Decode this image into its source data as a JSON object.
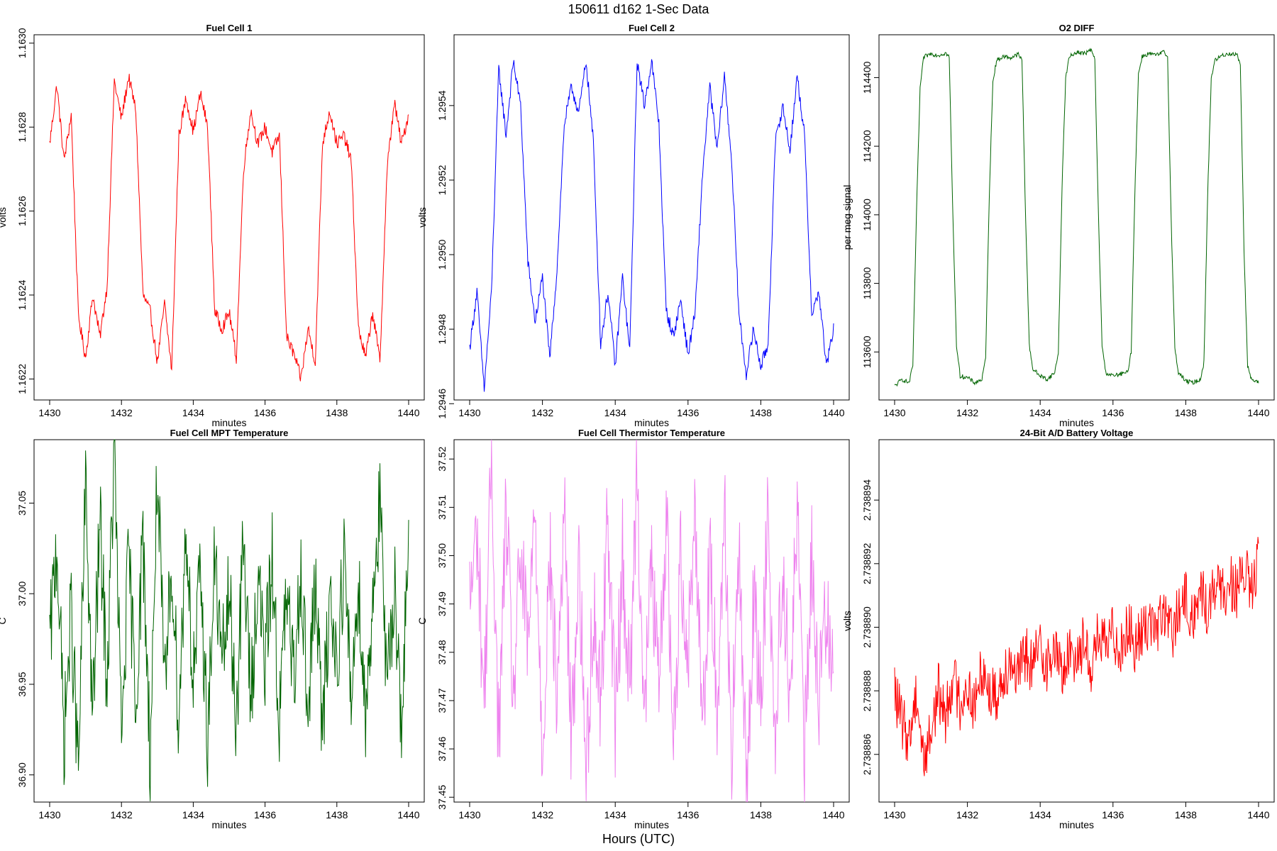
{
  "figure": {
    "title": "150611   d162   1-Sec Data",
    "xlabel": "Hours (UTC)"
  },
  "chart_data": [
    {
      "type": "line",
      "title": "Fuel Cell 1",
      "xlabel": "minutes",
      "ylabel": "volts",
      "color": "#ff0000",
      "xlim": [
        1430,
        1440
      ],
      "ylim": [
        1.16215,
        1.16302
      ],
      "xticks": [
        1430,
        1432,
        1434,
        1436,
        1438,
        1440
      ],
      "yticks": [
        1.1622,
        1.1624,
        1.1626,
        1.1628,
        1.163
      ],
      "ytick_labels": [
        "1.1622",
        "1.1624",
        "1.1626",
        "1.1628",
        "1.1630"
      ],
      "series": [
        {
          "x": [
            1430.0,
            1430.2,
            1430.4,
            1430.6,
            1430.8,
            1431.0,
            1431.2,
            1431.4,
            1431.6,
            1431.8,
            1432.0,
            1432.2,
            1432.4,
            1432.6,
            1432.8,
            1433.0,
            1433.2,
            1433.4,
            1433.6,
            1433.8,
            1434.0,
            1434.2,
            1434.4,
            1434.6,
            1434.8,
            1435.0,
            1435.2,
            1435.4,
            1435.6,
            1435.8,
            1436.0,
            1436.2,
            1436.4,
            1436.6,
            1436.8,
            1437.0,
            1437.2,
            1437.4,
            1437.6,
            1437.8,
            1438.0,
            1438.2,
            1438.4,
            1438.6,
            1438.8,
            1439.0,
            1439.2,
            1439.4,
            1439.6,
            1439.8,
            1440.0
          ],
          "y": [
            1.16276,
            1.1629,
            1.16272,
            1.16283,
            1.16235,
            1.16225,
            1.1624,
            1.1623,
            1.16242,
            1.16291,
            1.16282,
            1.16292,
            1.16284,
            1.1624,
            1.16236,
            1.16224,
            1.16238,
            1.16222,
            1.16278,
            1.16287,
            1.16279,
            1.16288,
            1.1628,
            1.16236,
            1.16232,
            1.16236,
            1.16225,
            1.1627,
            1.16284,
            1.16276,
            1.1628,
            1.16274,
            1.16278,
            1.1623,
            1.16226,
            1.1622,
            1.16232,
            1.16224,
            1.16276,
            1.16284,
            1.16276,
            1.16278,
            1.16272,
            1.16232,
            1.16225,
            1.16236,
            1.16224,
            1.1627,
            1.16286,
            1.16276,
            1.16283
          ]
        }
      ]
    },
    {
      "type": "line",
      "title": "Fuel Cell 2",
      "xlabel": "minutes",
      "ylabel": "volts",
      "color": "#0000ff",
      "xlim": [
        1430,
        1440
      ],
      "ylim": [
        1.29461,
        1.29559
      ],
      "xticks": [
        1430,
        1432,
        1434,
        1436,
        1438,
        1440
      ],
      "yticks": [
        1.2946,
        1.2948,
        1.295,
        1.2952,
        1.2954
      ],
      "ytick_labels": [
        "1.2946",
        "1.2948",
        "1.2950",
        "1.2952",
        "1.2954"
      ],
      "series": [
        {
          "x": [
            1430.0,
            1430.2,
            1430.4,
            1430.6,
            1430.8,
            1431.0,
            1431.2,
            1431.4,
            1431.6,
            1431.8,
            1432.0,
            1432.2,
            1432.4,
            1432.6,
            1432.8,
            1433.0,
            1433.2,
            1433.4,
            1433.6,
            1433.8,
            1434.0,
            1434.2,
            1434.4,
            1434.6,
            1434.8,
            1435.0,
            1435.2,
            1435.4,
            1435.6,
            1435.8,
            1436.0,
            1436.2,
            1436.4,
            1436.6,
            1436.8,
            1437.0,
            1437.2,
            1437.4,
            1437.6,
            1437.8,
            1438.0,
            1438.2,
            1438.4,
            1438.6,
            1438.8,
            1439.0,
            1439.2,
            1439.4,
            1439.6,
            1439.8,
            1440.0
          ],
          "y": [
            1.29475,
            1.2949,
            1.29464,
            1.2949,
            1.2955,
            1.29532,
            1.29552,
            1.2954,
            1.29498,
            1.29482,
            1.29494,
            1.29472,
            1.29496,
            1.29535,
            1.29545,
            1.29538,
            1.29552,
            1.2953,
            1.29476,
            1.2949,
            1.2947,
            1.29494,
            1.29474,
            1.29552,
            1.2954,
            1.29552,
            1.29535,
            1.29485,
            1.29478,
            1.29488,
            1.29473,
            1.29485,
            1.29522,
            1.29545,
            1.29528,
            1.29548,
            1.29525,
            1.29484,
            1.29468,
            1.2948,
            1.2947,
            1.29476,
            1.2953,
            1.2954,
            1.29528,
            1.29548,
            1.29532,
            1.29484,
            1.2949,
            1.2947,
            1.2948
          ]
        }
      ]
    },
    {
      "type": "line",
      "title": "O2 DIFF",
      "xlabel": "minutes",
      "ylabel": "per meg signal",
      "color": "#006400",
      "xlim": [
        1430,
        1440
      ],
      "ylim": [
        113460,
        114525
      ],
      "xticks": [
        1430,
        1432,
        1434,
        1436,
        1438,
        1440
      ],
      "yticks": [
        113600,
        113800,
        114000,
        114200,
        114400
      ],
      "ytick_labels": [
        "113600",
        "113800",
        "114000",
        "114200",
        "114400"
      ],
      "series": [
        {
          "x": [
            1430.0,
            1430.2,
            1430.4,
            1430.5,
            1430.6,
            1430.7,
            1430.8,
            1431.0,
            1431.2,
            1431.4,
            1431.5,
            1431.6,
            1431.7,
            1431.8,
            1432.0,
            1432.2,
            1432.4,
            1432.5,
            1432.6,
            1432.7,
            1432.8,
            1433.0,
            1433.2,
            1433.4,
            1433.5,
            1433.6,
            1433.7,
            1433.8,
            1434.0,
            1434.2,
            1434.4,
            1434.5,
            1434.6,
            1434.7,
            1434.8,
            1435.0,
            1435.2,
            1435.4,
            1435.5,
            1435.6,
            1435.7,
            1435.8,
            1436.0,
            1436.2,
            1436.4,
            1436.5,
            1436.6,
            1436.7,
            1436.8,
            1437.0,
            1437.2,
            1437.4,
            1437.5,
            1437.6,
            1437.7,
            1437.8,
            1438.0,
            1438.2,
            1438.4,
            1438.5,
            1438.6,
            1438.7,
            1438.8,
            1439.0,
            1439.2,
            1439.4,
            1439.5,
            1439.6,
            1439.7,
            1439.8,
            1440.0
          ],
          "y": [
            113500,
            113520,
            113510,
            113560,
            114000,
            114370,
            114460,
            114470,
            114465,
            114472,
            114460,
            114000,
            113620,
            113530,
            113525,
            113510,
            113520,
            113580,
            114050,
            114390,
            114450,
            114462,
            114458,
            114468,
            114450,
            113990,
            113620,
            113550,
            113530,
            113520,
            113540,
            113600,
            114080,
            114400,
            114460,
            114475,
            114470,
            114480,
            114455,
            114000,
            113620,
            113540,
            113530,
            113535,
            113540,
            113600,
            114060,
            114410,
            114462,
            114470,
            114465,
            114475,
            114460,
            113980,
            113610,
            113540,
            113515,
            113510,
            113520,
            113570,
            114050,
            114400,
            114450,
            114465,
            114470,
            114468,
            114440,
            113900,
            113560,
            113520,
            113510
          ]
        }
      ]
    },
    {
      "type": "line",
      "title": "Fuel Cell MPT Temperature",
      "xlabel": "minutes",
      "ylabel": "C",
      "color": "#006400",
      "xlim": [
        1430,
        1440
      ],
      "ylim": [
        36.885,
        37.085
      ],
      "xticks": [
        1430,
        1432,
        1434,
        1436,
        1438,
        1440
      ],
      "yticks": [
        36.9,
        36.95,
        37.0,
        37.05
      ],
      "ytick_labels": [
        "36.90",
        "36.95",
        "37.00",
        "37.05"
      ],
      "series": [
        {
          "x": [
            1430.0,
            1430.2,
            1430.4,
            1430.6,
            1430.8,
            1431.0,
            1431.2,
            1431.4,
            1431.6,
            1431.8,
            1432.0,
            1432.2,
            1432.4,
            1432.6,
            1432.8,
            1433.0,
            1433.2,
            1433.4,
            1433.6,
            1433.8,
            1434.0,
            1434.2,
            1434.4,
            1434.6,
            1434.8,
            1435.0,
            1435.2,
            1435.4,
            1435.6,
            1435.8,
            1436.0,
            1436.2,
            1436.4,
            1436.6,
            1436.8,
            1437.0,
            1437.2,
            1437.4,
            1437.6,
            1437.8,
            1438.0,
            1438.2,
            1438.4,
            1438.6,
            1438.8,
            1439.0,
            1439.2,
            1439.4,
            1439.6,
            1439.8,
            1440.0
          ],
          "y": [
            36.97,
            37.03,
            36.92,
            36.99,
            36.9,
            37.06,
            36.93,
            37.04,
            36.95,
            37.08,
            36.92,
            37.02,
            36.94,
            37.03,
            36.91,
            37.07,
            36.94,
            37.02,
            36.93,
            37.04,
            36.95,
            37.01,
            36.92,
            37.02,
            36.96,
            37.0,
            36.93,
            37.03,
            36.94,
            37.01,
            36.96,
            37.02,
            36.93,
            37.0,
            36.95,
            37.02,
            36.93,
            37.01,
            36.92,
            37.0,
            36.96,
            37.02,
            36.94,
            37.01,
            36.93,
            37.0,
            37.05,
            36.94,
            37.01,
            36.93,
            37.02
          ]
        }
      ]
    },
    {
      "type": "line",
      "title": "Fuel Cell Thermistor Temperature",
      "xlabel": "minutes",
      "ylabel": "C",
      "color": "#ee82ee",
      "xlim": [
        1430,
        1440
      ],
      "ylim": [
        37.449,
        37.524
      ],
      "xticks": [
        1430,
        1432,
        1434,
        1436,
        1438,
        1440
      ],
      "yticks": [
        37.45,
        37.46,
        37.47,
        37.48,
        37.49,
        37.5,
        37.51,
        37.52
      ],
      "ytick_labels": [
        "37.45",
        "37.46",
        "37.47",
        "37.48",
        "37.49",
        "37.50",
        "37.51",
        "37.52"
      ],
      "series": [
        {
          "x": [
            1430.0,
            1430.2,
            1430.4,
            1430.6,
            1430.8,
            1431.0,
            1431.2,
            1431.4,
            1431.6,
            1431.8,
            1432.0,
            1432.2,
            1432.4,
            1432.6,
            1432.8,
            1433.0,
            1433.2,
            1433.4,
            1433.6,
            1433.8,
            1434.0,
            1434.2,
            1434.4,
            1434.6,
            1434.8,
            1435.0,
            1435.2,
            1435.4,
            1435.6,
            1435.8,
            1436.0,
            1436.2,
            1436.4,
            1436.6,
            1436.8,
            1437.0,
            1437.2,
            1437.4,
            1437.6,
            1437.8,
            1438.0,
            1438.2,
            1438.4,
            1438.6,
            1438.8,
            1439.0,
            1439.2,
            1439.4,
            1439.6,
            1439.8,
            1440.0
          ],
          "y": [
            37.49,
            37.505,
            37.47,
            37.52,
            37.46,
            37.51,
            37.47,
            37.5,
            37.48,
            37.51,
            37.46,
            37.5,
            37.47,
            37.51,
            37.46,
            37.5,
            37.455,
            37.49,
            37.47,
            37.51,
            37.465,
            37.5,
            37.47,
            37.52,
            37.465,
            37.5,
            37.47,
            37.51,
            37.46,
            37.5,
            37.48,
            37.51,
            37.465,
            37.5,
            37.47,
            37.51,
            37.46,
            37.5,
            37.452,
            37.49,
            37.47,
            37.51,
            37.46,
            37.5,
            37.47,
            37.51,
            37.456,
            37.5,
            37.47,
            37.49,
            37.48
          ]
        }
      ]
    },
    {
      "type": "line",
      "title": "24-Bit A/D Battery Voltage",
      "xlabel": "minutes",
      "ylabel": "volts",
      "color": "#ff0000",
      "xlim": [
        1430,
        1440
      ],
      "ylim": [
        2.7388845,
        2.7388959
      ],
      "xticks": [
        1430,
        1432,
        1434,
        1436,
        1438,
        1440
      ],
      "yticks": [
        2.738886,
        2.738888,
        2.73889,
        2.738892,
        2.738894
      ],
      "ytick_labels": [
        "2.738886",
        "2.738888",
        "2.738890",
        "2.738892",
        "2.738894"
      ],
      "series": [
        {
          "x": [
            1430.0,
            1430.2,
            1430.4,
            1430.6,
            1430.8,
            1431.0,
            1431.2,
            1431.4,
            1431.6,
            1431.8,
            1432.0,
            1432.2,
            1432.4,
            1432.6,
            1432.8,
            1433.0,
            1433.2,
            1433.4,
            1433.6,
            1433.8,
            1434.0,
            1434.2,
            1434.4,
            1434.6,
            1434.8,
            1435.0,
            1435.2,
            1435.4,
            1435.6,
            1435.8,
            1436.0,
            1436.2,
            1436.4,
            1436.6,
            1436.8,
            1437.0,
            1437.2,
            1437.4,
            1437.6,
            1437.8,
            1438.0,
            1438.2,
            1438.4,
            1438.6,
            1438.8,
            1439.0,
            1439.2,
            1439.4,
            1439.6,
            1439.8,
            1440.0
          ],
          "y": [
            2.738888,
            2.738887,
            2.7388865,
            2.738888,
            2.7388858,
            2.7388867,
            2.738888,
            2.7388872,
            2.7388885,
            2.7388876,
            2.7388882,
            2.7388874,
            2.7388888,
            2.738888,
            2.7388878,
            2.7388886,
            2.738889,
            2.7388884,
            2.7388892,
            2.7388887,
            2.7388895,
            2.7388888,
            2.7388893,
            2.7388886,
            2.7388891,
            2.7388892,
            2.7388895,
            2.7388888,
            2.7388897,
            2.7388893,
            2.7388899,
            2.7388893,
            2.7388901,
            2.7388894,
            2.7388898,
            2.7388903,
            2.7388899,
            2.7388905,
            2.7388898,
            2.7388904,
            2.7388909,
            2.7388902,
            2.7388912,
            2.7388905,
            2.7388914,
            2.7388909,
            2.7388916,
            2.738891,
            2.7388918,
            2.7388911,
            2.7388921
          ]
        }
      ]
    }
  ]
}
